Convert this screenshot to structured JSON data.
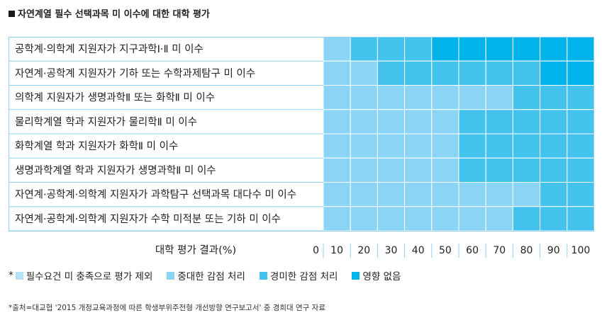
{
  "title": "자연계열 필수 선택과목 미 이수에 대한 대학 평가",
  "chart_data": {
    "type": "heatmap",
    "title": "자연계열 필수 선택과목 미 이수에 대한 대학 평가",
    "rows": [
      "공학계·의학계 지원자가 지구과학Ⅰ·Ⅱ 미 이수",
      "자연계·공학계 지원자가 기하 또는 수학과제탐구 미 이수",
      "의학계 지원자가 생명과학Ⅱ 또는 화학Ⅱ 미 이수",
      "물리학계열 학과 지원자가 물리학Ⅱ 미 이수",
      "화학계열 학과 지원자가 화학Ⅱ 미 이수",
      "생명과학계열 학과 지원자가 생명과학Ⅱ 미 이수",
      "자연계·공학계·의학계 지원자가 과학탐구 선택과목 대다수 미 이수",
      "자연계·공학계·의학계 지원자가 수학 미적분 또는 기하 미 이수"
    ],
    "x_label": "대학 평가 결과(%)",
    "x_ticks": [
      "0",
      "10",
      "20",
      "30",
      "40",
      "50",
      "60",
      "70",
      "80",
      "90",
      "100"
    ],
    "levels": [
      {
        "key": 1,
        "label": "필수요건 미 충족으로 평가 제외",
        "color": "#b3e3f9"
      },
      {
        "key": 2,
        "label": "중대한 감점 처리",
        "color": "#8ad5f5"
      },
      {
        "key": 3,
        "label": "경미한 감점 처리",
        "color": "#43c2ee"
      },
      {
        "key": 4,
        "label": "영향 없음",
        "color": "#00b3ea"
      }
    ],
    "values": [
      [
        2,
        3,
        3,
        3,
        4,
        4,
        4,
        4,
        4,
        4
      ],
      [
        2,
        2,
        3,
        3,
        3,
        3,
        3,
        3,
        4,
        4
      ],
      [
        2,
        2,
        2,
        2,
        2,
        2,
        2,
        3,
        3,
        3
      ],
      [
        2,
        2,
        2,
        2,
        2,
        3,
        3,
        3,
        3,
        3
      ],
      [
        2,
        2,
        2,
        2,
        2,
        3,
        3,
        3,
        3,
        3
      ],
      [
        2,
        2,
        2,
        2,
        2,
        3,
        3,
        3,
        3,
        3
      ],
      [
        2,
        2,
        2,
        2,
        2,
        2,
        2,
        2,
        3,
        3
      ],
      [
        2,
        2,
        2,
        2,
        2,
        2,
        2,
        3,
        3,
        3
      ]
    ]
  },
  "legend": {
    "prefix": "*"
  },
  "source": "*출처=대교협 '2015 개정교육과정에 따른 학생부위주전형 개선방향 연구보고서' 중 경희대 연구 자료"
}
